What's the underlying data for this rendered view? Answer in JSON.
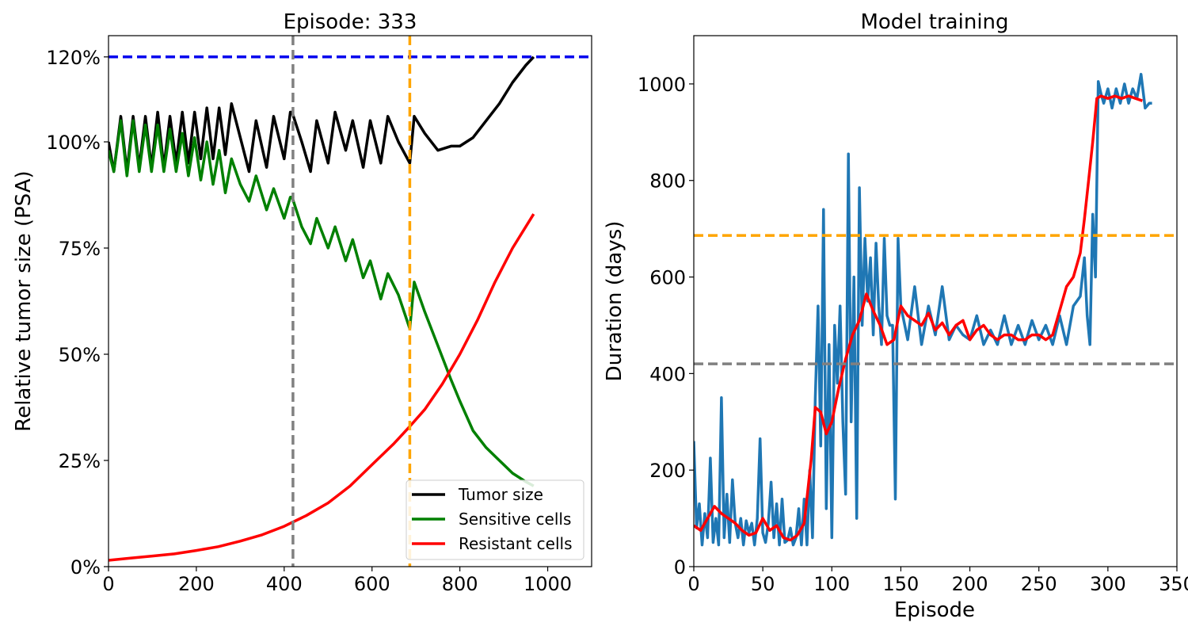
{
  "chart_data": [
    {
      "type": "line",
      "title": "Episode: 333",
      "xlabel": "",
      "ylabel": "Relative tumor size (PSA)",
      "xlim": [
        0,
        1100
      ],
      "ylim": [
        0,
        1.25
      ],
      "xticks": [
        0,
        200,
        400,
        600,
        800,
        1000
      ],
      "xtick_labels": [
        "0",
        "200",
        "400",
        "600",
        "800",
        "1000"
      ],
      "yticks": [
        0,
        0.25,
        0.5,
        0.75,
        1.0,
        1.2
      ],
      "ytick_labels": [
        "0%",
        "25%",
        "50%",
        "75%",
        "100%",
        "120%"
      ],
      "grid": false,
      "legend_position": "lower-right",
      "reference_lines": [
        {
          "orientation": "horizontal",
          "value": 1.2,
          "color": "#0000ee",
          "style": "dashed"
        },
        {
          "orientation": "vertical",
          "value": 420,
          "color": "#808080",
          "style": "dashed"
        },
        {
          "orientation": "vertical",
          "value": 686,
          "color": "#ffa500",
          "style": "dashed"
        }
      ],
      "series": [
        {
          "name": "Tumor size",
          "color": "#000000",
          "x": [
            0,
            12,
            28,
            42,
            56,
            70,
            84,
            98,
            112,
            126,
            140,
            154,
            168,
            182,
            196,
            210,
            224,
            238,
            252,
            266,
            280,
            300,
            320,
            336,
            360,
            376,
            400,
            414,
            418,
            440,
            460,
            474,
            500,
            516,
            540,
            556,
            580,
            596,
            620,
            636,
            660,
            686,
            696,
            720,
            750,
            780,
            800,
            830,
            860,
            890,
            920,
            950,
            968
          ],
          "y": [
            1.0,
            0.93,
            1.06,
            0.93,
            1.06,
            0.94,
            1.06,
            0.94,
            1.07,
            0.94,
            1.06,
            0.95,
            1.07,
            0.95,
            1.07,
            0.96,
            1.08,
            0.96,
            1.08,
            0.97,
            1.09,
            1.01,
            0.93,
            1.05,
            0.94,
            1.06,
            0.96,
            1.07,
            1.07,
            1.0,
            0.93,
            1.05,
            0.95,
            1.07,
            0.98,
            1.05,
            0.94,
            1.05,
            0.95,
            1.06,
            1.0,
            0.95,
            1.06,
            1.02,
            0.98,
            0.99,
            0.99,
            1.01,
            1.05,
            1.09,
            1.14,
            1.18,
            1.2
          ]
        },
        {
          "name": "Sensitive cells",
          "color": "#008000",
          "x": [
            0,
            12,
            28,
            42,
            56,
            70,
            84,
            98,
            112,
            126,
            140,
            154,
            168,
            182,
            196,
            210,
            224,
            238,
            252,
            266,
            280,
            300,
            320,
            336,
            360,
            376,
            400,
            414,
            418,
            440,
            460,
            474,
            500,
            516,
            540,
            556,
            580,
            596,
            620,
            636,
            660,
            686,
            696,
            720,
            750,
            780,
            800,
            830,
            860,
            890,
            920,
            950,
            968
          ],
          "y": [
            0.98,
            0.93,
            1.05,
            0.92,
            1.05,
            0.93,
            1.04,
            0.93,
            1.04,
            0.93,
            1.03,
            0.93,
            1.02,
            0.92,
            1.01,
            0.91,
            1.0,
            0.9,
            0.98,
            0.88,
            0.96,
            0.9,
            0.86,
            0.92,
            0.84,
            0.89,
            0.82,
            0.87,
            0.87,
            0.8,
            0.76,
            0.82,
            0.75,
            0.8,
            0.72,
            0.77,
            0.68,
            0.72,
            0.63,
            0.69,
            0.64,
            0.56,
            0.67,
            0.6,
            0.52,
            0.44,
            0.39,
            0.32,
            0.28,
            0.25,
            0.22,
            0.2,
            0.19
          ]
        },
        {
          "name": "Resistant cells",
          "color": "#ff0000",
          "x": [
            0,
            50,
            100,
            150,
            200,
            250,
            300,
            350,
            400,
            450,
            500,
            550,
            600,
            650,
            686,
            720,
            760,
            800,
            840,
            880,
            920,
            968
          ],
          "y": [
            0.015,
            0.02,
            0.025,
            0.03,
            0.038,
            0.047,
            0.06,
            0.075,
            0.095,
            0.12,
            0.15,
            0.19,
            0.24,
            0.29,
            0.33,
            0.37,
            0.43,
            0.5,
            0.58,
            0.67,
            0.75,
            0.83
          ]
        }
      ]
    },
    {
      "type": "line",
      "title": "Model training",
      "xlabel": "Episode",
      "ylabel": "Duration (days)",
      "xlim": [
        0,
        350
      ],
      "ylim": [
        0,
        1100
      ],
      "xticks": [
        0,
        50,
        100,
        150,
        200,
        250,
        300,
        350
      ],
      "xtick_labels": [
        "0",
        "50",
        "100",
        "150",
        "200",
        "250",
        "300",
        "350"
      ],
      "yticks": [
        0,
        200,
        400,
        600,
        800,
        1000
      ],
      "ytick_labels": [
        "0",
        "200",
        "400",
        "600",
        "800",
        "1000"
      ],
      "grid": false,
      "reference_lines": [
        {
          "orientation": "horizontal",
          "value": 686,
          "color": "#ffa500",
          "style": "dashed"
        },
        {
          "orientation": "horizontal",
          "value": 420,
          "color": "#808080",
          "style": "dashed"
        }
      ],
      "series": [
        {
          "color": "#1f77b4",
          "x": [
            0,
            2,
            4,
            6,
            8,
            10,
            12,
            14,
            16,
            18,
            20,
            22,
            24,
            26,
            28,
            30,
            32,
            34,
            36,
            38,
            40,
            42,
            44,
            46,
            48,
            50,
            52,
            54,
            56,
            58,
            60,
            62,
            64,
            66,
            68,
            70,
            72,
            74,
            76,
            78,
            80,
            82,
            84,
            86,
            88,
            90,
            92,
            94,
            96,
            98,
            100,
            102,
            104,
            106,
            108,
            110,
            112,
            114,
            116,
            118,
            120,
            122,
            124,
            126,
            128,
            130,
            132,
            134,
            136,
            138,
            140,
            142,
            144,
            146,
            148,
            150,
            155,
            160,
            165,
            170,
            175,
            180,
            185,
            190,
            195,
            200,
            205,
            210,
            215,
            220,
            225,
            230,
            235,
            240,
            245,
            250,
            255,
            260,
            265,
            270,
            275,
            280,
            283,
            285,
            287,
            289,
            291,
            293,
            295,
            297,
            300,
            303,
            306,
            309,
            312,
            315,
            318,
            321,
            324,
            327,
            330,
            332
          ],
          "y": [
            260,
            80,
            130,
            45,
            110,
            60,
            225,
            50,
            100,
            45,
            350,
            60,
            150,
            50,
            180,
            90,
            60,
            100,
            45,
            95,
            70,
            90,
            45,
            100,
            265,
            70,
            50,
            90,
            175,
            60,
            130,
            45,
            140,
            50,
            55,
            80,
            45,
            60,
            120,
            45,
            140,
            45,
            200,
            60,
            350,
            540,
            250,
            740,
            120,
            460,
            60,
            500,
            380,
            540,
            300,
            150,
            855,
            300,
            600,
            100,
            785,
            500,
            680,
            550,
            640,
            480,
            670,
            540,
            460,
            680,
            520,
            500,
            500,
            140,
            680,
            540,
            470,
            580,
            460,
            540,
            480,
            580,
            470,
            500,
            480,
            470,
            520,
            460,
            490,
            460,
            520,
            460,
            500,
            460,
            510,
            470,
            500,
            460,
            520,
            460,
            540,
            560,
            640,
            520,
            460,
            730,
            600,
            1005,
            980,
            960,
            990,
            950,
            990,
            960,
            1000,
            960,
            990,
            970,
            1020,
            950,
            960,
            960
          ]
        },
        {
          "color": "#ff0000",
          "x": [
            0,
            5,
            10,
            15,
            20,
            25,
            30,
            35,
            40,
            45,
            50,
            55,
            60,
            65,
            70,
            75,
            80,
            85,
            88,
            92,
            96,
            100,
            105,
            110,
            115,
            120,
            125,
            130,
            135,
            140,
            145,
            150,
            155,
            160,
            165,
            170,
            175,
            180,
            185,
            190,
            195,
            200,
            205,
            210,
            215,
            220,
            225,
            230,
            235,
            240,
            245,
            250,
            255,
            260,
            265,
            270,
            275,
            280,
            283,
            286,
            289,
            292,
            295,
            300,
            305,
            310,
            315,
            320,
            325
          ],
          "y": [
            85,
            75,
            100,
            125,
            110,
            100,
            90,
            75,
            65,
            70,
            100,
            75,
            85,
            60,
            55,
            65,
            90,
            220,
            330,
            320,
            275,
            300,
            370,
            430,
            480,
            510,
            565,
            530,
            500,
            460,
            470,
            540,
            520,
            510,
            500,
            525,
            490,
            505,
            480,
            500,
            510,
            470,
            490,
            500,
            480,
            470,
            480,
            480,
            470,
            470,
            480,
            480,
            470,
            480,
            530,
            580,
            600,
            650,
            720,
            800,
            880,
            970,
            975,
            970,
            975,
            970,
            975,
            970,
            965
          ]
        }
      ]
    }
  ]
}
